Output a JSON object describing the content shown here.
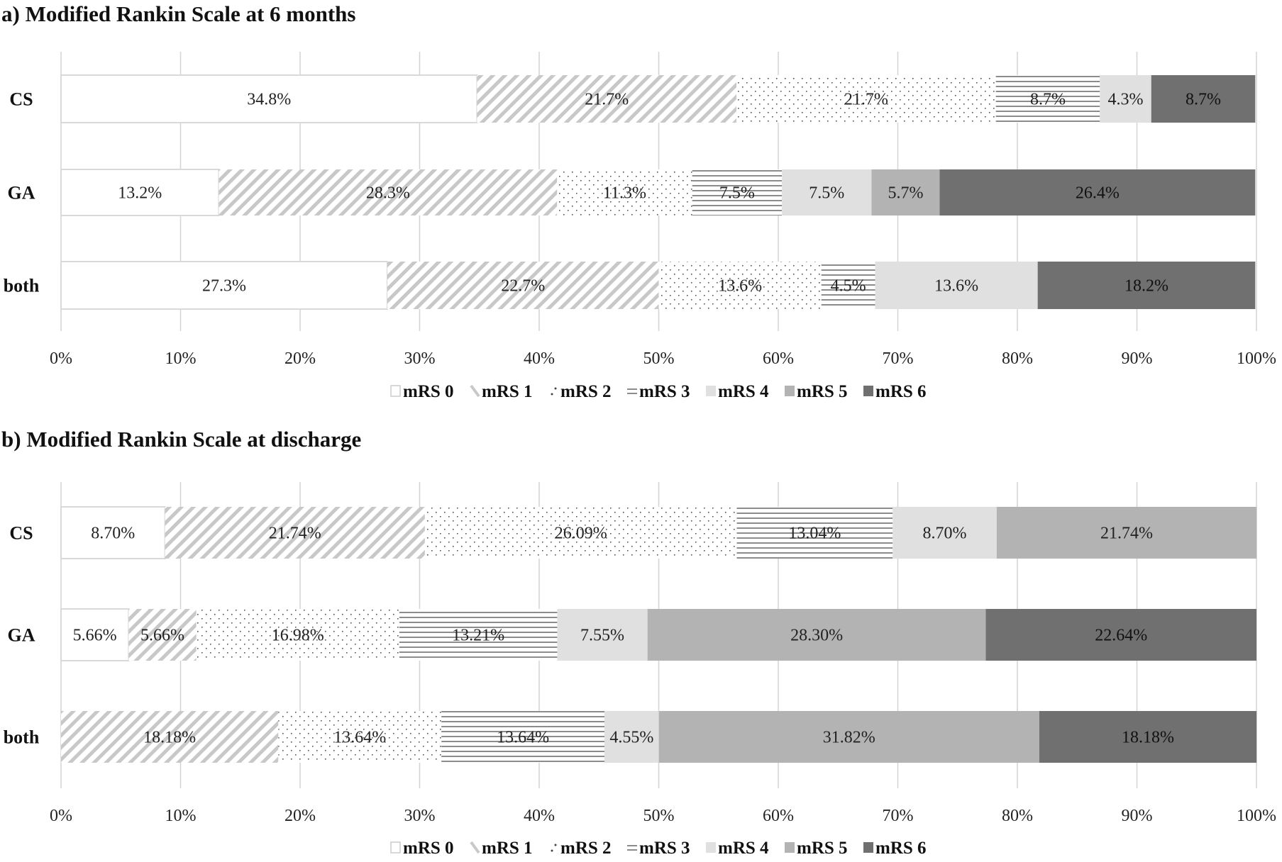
{
  "colors": {
    "mrs0": "#ffffff",
    "mrs1": "#c8c8c8",
    "mrs2": "#555555",
    "mrs3": "#8c8c8c",
    "mrs4": "#e0e0e0",
    "mrs5": "#b3b3b3",
    "mrs6": "#707070",
    "grid": "#d4d4d4"
  },
  "chart_data": [
    {
      "type": "bar",
      "orientation": "horizontal",
      "stacked": "100%",
      "title": "a) Modified Rankin Scale at 6 months",
      "categories": [
        "CS",
        "GA",
        "both"
      ],
      "xlim": [
        0,
        100
      ],
      "x_tick_labels": [
        "0%",
        "10%",
        "20%",
        "30%",
        "40%",
        "50%",
        "60%",
        "70%",
        "80%",
        "90%",
        "100%"
      ],
      "grid": true,
      "legend_position": "bottom",
      "series": [
        {
          "name": "mRS 0",
          "pattern": "none",
          "values": [
            34.8,
            13.2,
            27.3
          ],
          "data_labels": [
            "34.8%",
            "13.2%",
            "27.3%"
          ]
        },
        {
          "name": "mRS 1",
          "pattern": "diagonal",
          "values": [
            21.7,
            28.3,
            22.7
          ],
          "data_labels": [
            "21.7%",
            "28.3%",
            "22.7%"
          ]
        },
        {
          "name": "mRS 2",
          "pattern": "dots",
          "values": [
            21.7,
            11.3,
            13.6
          ],
          "data_labels": [
            "21.7%",
            "11.3%",
            "13.6%"
          ]
        },
        {
          "name": "mRS 3",
          "pattern": "horizontal",
          "values": [
            8.7,
            7.5,
            4.5
          ],
          "data_labels": [
            "8.7%",
            "7.5%",
            "4.5%"
          ]
        },
        {
          "name": "mRS 4",
          "pattern": "solid",
          "values": [
            4.3,
            7.5,
            13.6
          ],
          "data_labels": [
            "4.3%",
            "7.5%",
            "13.6%"
          ]
        },
        {
          "name": "mRS 5",
          "pattern": "solid",
          "values": [
            0,
            5.7,
            0
          ],
          "data_labels": [
            "",
            "5.7%",
            ""
          ]
        },
        {
          "name": "mRS 6",
          "pattern": "solid",
          "values": [
            8.7,
            26.4,
            18.2
          ],
          "data_labels": [
            "8.7%",
            "26.4%",
            "18.2%"
          ]
        }
      ]
    },
    {
      "type": "bar",
      "orientation": "horizontal",
      "stacked": "100%",
      "title": "b) Modified Rankin Scale at discharge",
      "categories": [
        "CS",
        "GA",
        "both"
      ],
      "xlim": [
        0,
        100
      ],
      "x_tick_labels": [
        "0%",
        "10%",
        "20%",
        "30%",
        "40%",
        "50%",
        "60%",
        "70%",
        "80%",
        "90%",
        "100%"
      ],
      "grid": true,
      "legend_position": "bottom",
      "series": [
        {
          "name": "mRS 0",
          "pattern": "none",
          "values": [
            8.7,
            5.66,
            0
          ],
          "data_labels": [
            "8.70%",
            "5.66%",
            ""
          ]
        },
        {
          "name": "mRS 1",
          "pattern": "diagonal",
          "values": [
            21.74,
            5.66,
            18.18
          ],
          "data_labels": [
            "21.74%",
            "5.66%",
            "18.18%"
          ]
        },
        {
          "name": "mRS 2",
          "pattern": "dots",
          "values": [
            26.09,
            16.98,
            13.64
          ],
          "data_labels": [
            "26.09%",
            "16.98%",
            "13.64%"
          ]
        },
        {
          "name": "mRS 3",
          "pattern": "horizontal",
          "values": [
            13.04,
            13.21,
            13.64
          ],
          "data_labels": [
            "13.04%",
            "13.21%",
            "13.64%"
          ]
        },
        {
          "name": "mRS 4",
          "pattern": "solid",
          "values": [
            8.7,
            7.55,
            4.55
          ],
          "data_labels": [
            "8.70%",
            "7.55%",
            "4.55%"
          ]
        },
        {
          "name": "mRS 5",
          "pattern": "solid",
          "values": [
            21.74,
            28.3,
            31.82
          ],
          "data_labels": [
            "21.74%",
            "28.30%",
            "31.82%"
          ]
        },
        {
          "name": "mRS 6",
          "pattern": "solid",
          "values": [
            0,
            22.64,
            18.18
          ],
          "data_labels": [
            "",
            "22.64%",
            "18.18%"
          ]
        }
      ]
    }
  ]
}
